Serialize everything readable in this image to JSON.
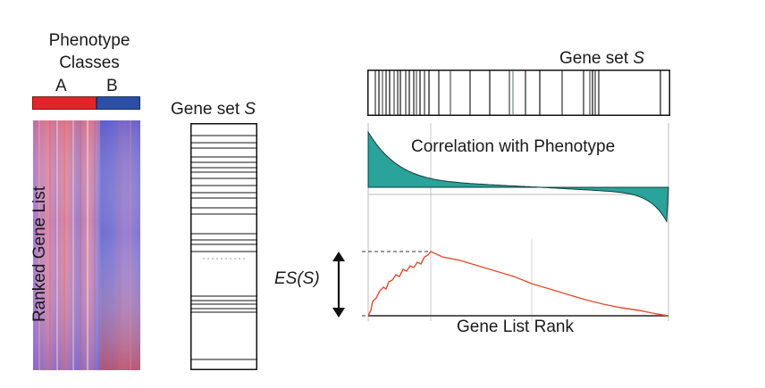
{
  "left_panel": {
    "title_line1": "Phenotype",
    "title_line2": "Classes",
    "class_a": "A",
    "class_b": "B",
    "ranked_label": "Ranked Gene List",
    "class_a_color": "#e0252b",
    "class_b_color": "#2c4fa6"
  },
  "middle_panel": {
    "title_prefix": "Gene set ",
    "title_italic": "S"
  },
  "right_panel": {
    "title_prefix": "Gene set ",
    "title_italic": "S",
    "correlation_label": "Correlation with Phenotype",
    "es_label": "ES(S)",
    "rank_label": "Gene List Rank",
    "fill_color": "#2aa39a",
    "es_line_color": "#e34a2c"
  },
  "icons": {
    "es_arrow": "double-headed-vertical-arrow"
  }
}
